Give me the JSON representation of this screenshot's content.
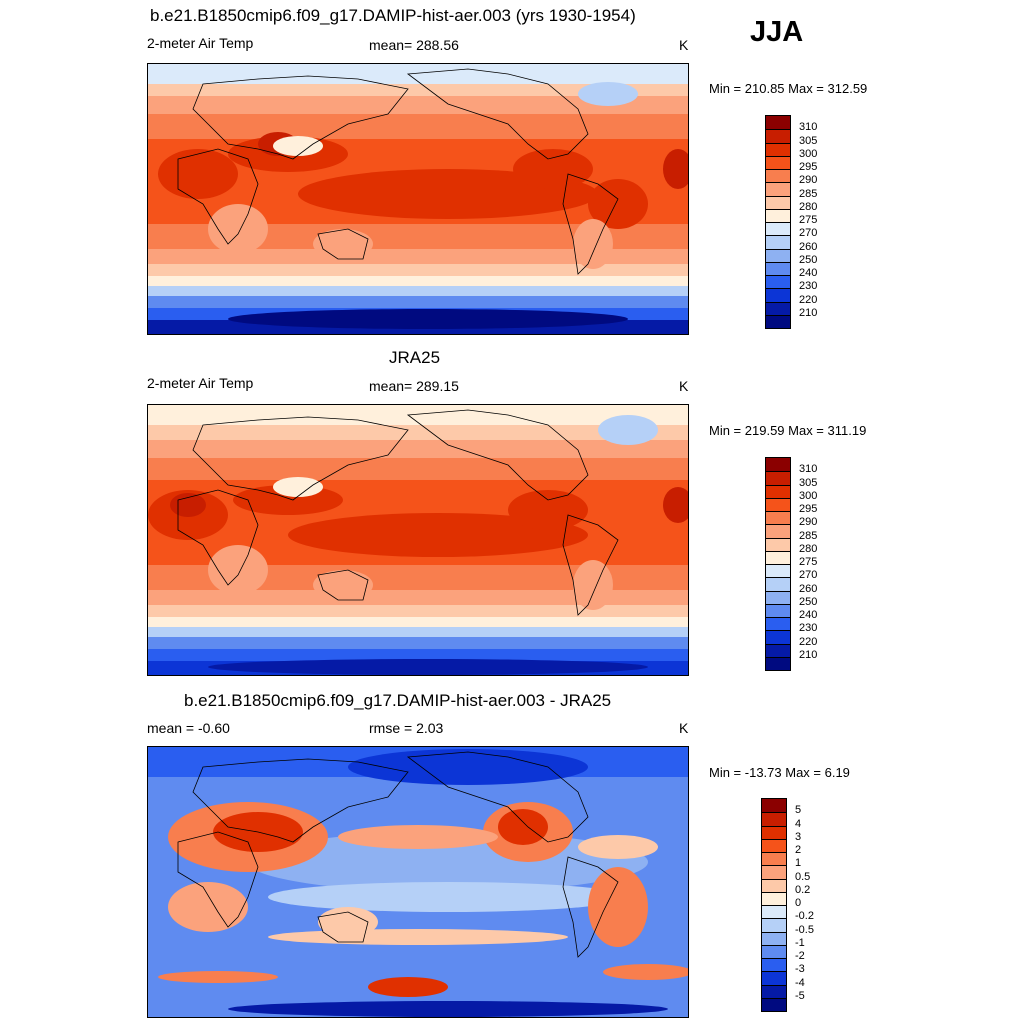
{
  "season": "JJA",
  "panels": [
    {
      "title": "b.e21.B1850cmip6.f09_g17.DAMIP-hist-aer.003 (yrs 1930-1954)",
      "left_label": "2-meter Air Temp",
      "center_label": "mean= 288.56",
      "units": "K",
      "minmax": "Min = 210.85 Max = 312.59",
      "kind": "abs"
    },
    {
      "title": "JRA25",
      "left_label": "2-meter Air Temp",
      "center_label": "mean= 289.15",
      "units": "K",
      "minmax": "Min = 219.59 Max = 311.19",
      "kind": "abs"
    },
    {
      "title": "b.e21.B1850cmip6.f09_g17.DAMIP-hist-aer.003 - JRA25",
      "left_label": "mean =  -0.60",
      "center_label": "rmse =   2.03",
      "units": "K",
      "minmax": "Min = -13.73 Max =   6.19",
      "kind": "diff"
    }
  ],
  "colorbars": {
    "abs": {
      "labels": [
        "310",
        "305",
        "300",
        "295",
        "290",
        "285",
        "280",
        "275",
        "270",
        "260",
        "250",
        "240",
        "230",
        "220",
        "210"
      ],
      "colors": [
        "#8b0000",
        "#c81e00",
        "#e03000",
        "#f5531a",
        "#f87e4e",
        "#fba27c",
        "#fdc9a9",
        "#fff0dc",
        "#dbeafa",
        "#b5d0f7",
        "#8eb1f2",
        "#5f8bf0",
        "#2a5ef0",
        "#0c35d6",
        "#051aa6",
        "#000a80"
      ]
    },
    "diff": {
      "labels": [
        "5",
        "4",
        "3",
        "2",
        "1",
        "0.5",
        "0.2",
        "0",
        "-0.2",
        "-0.5",
        "-1",
        "-2",
        "-3",
        "-4",
        "-5"
      ],
      "colors": [
        "#8b0000",
        "#c81e00",
        "#e03000",
        "#f5531a",
        "#f87e4e",
        "#fba27c",
        "#fdc9a9",
        "#fff0dc",
        "#dbeafa",
        "#b5d0f7",
        "#8eb1f2",
        "#5f8bf0",
        "#2a5ef0",
        "#0c35d6",
        "#051aa6",
        "#000a80"
      ]
    }
  }
}
